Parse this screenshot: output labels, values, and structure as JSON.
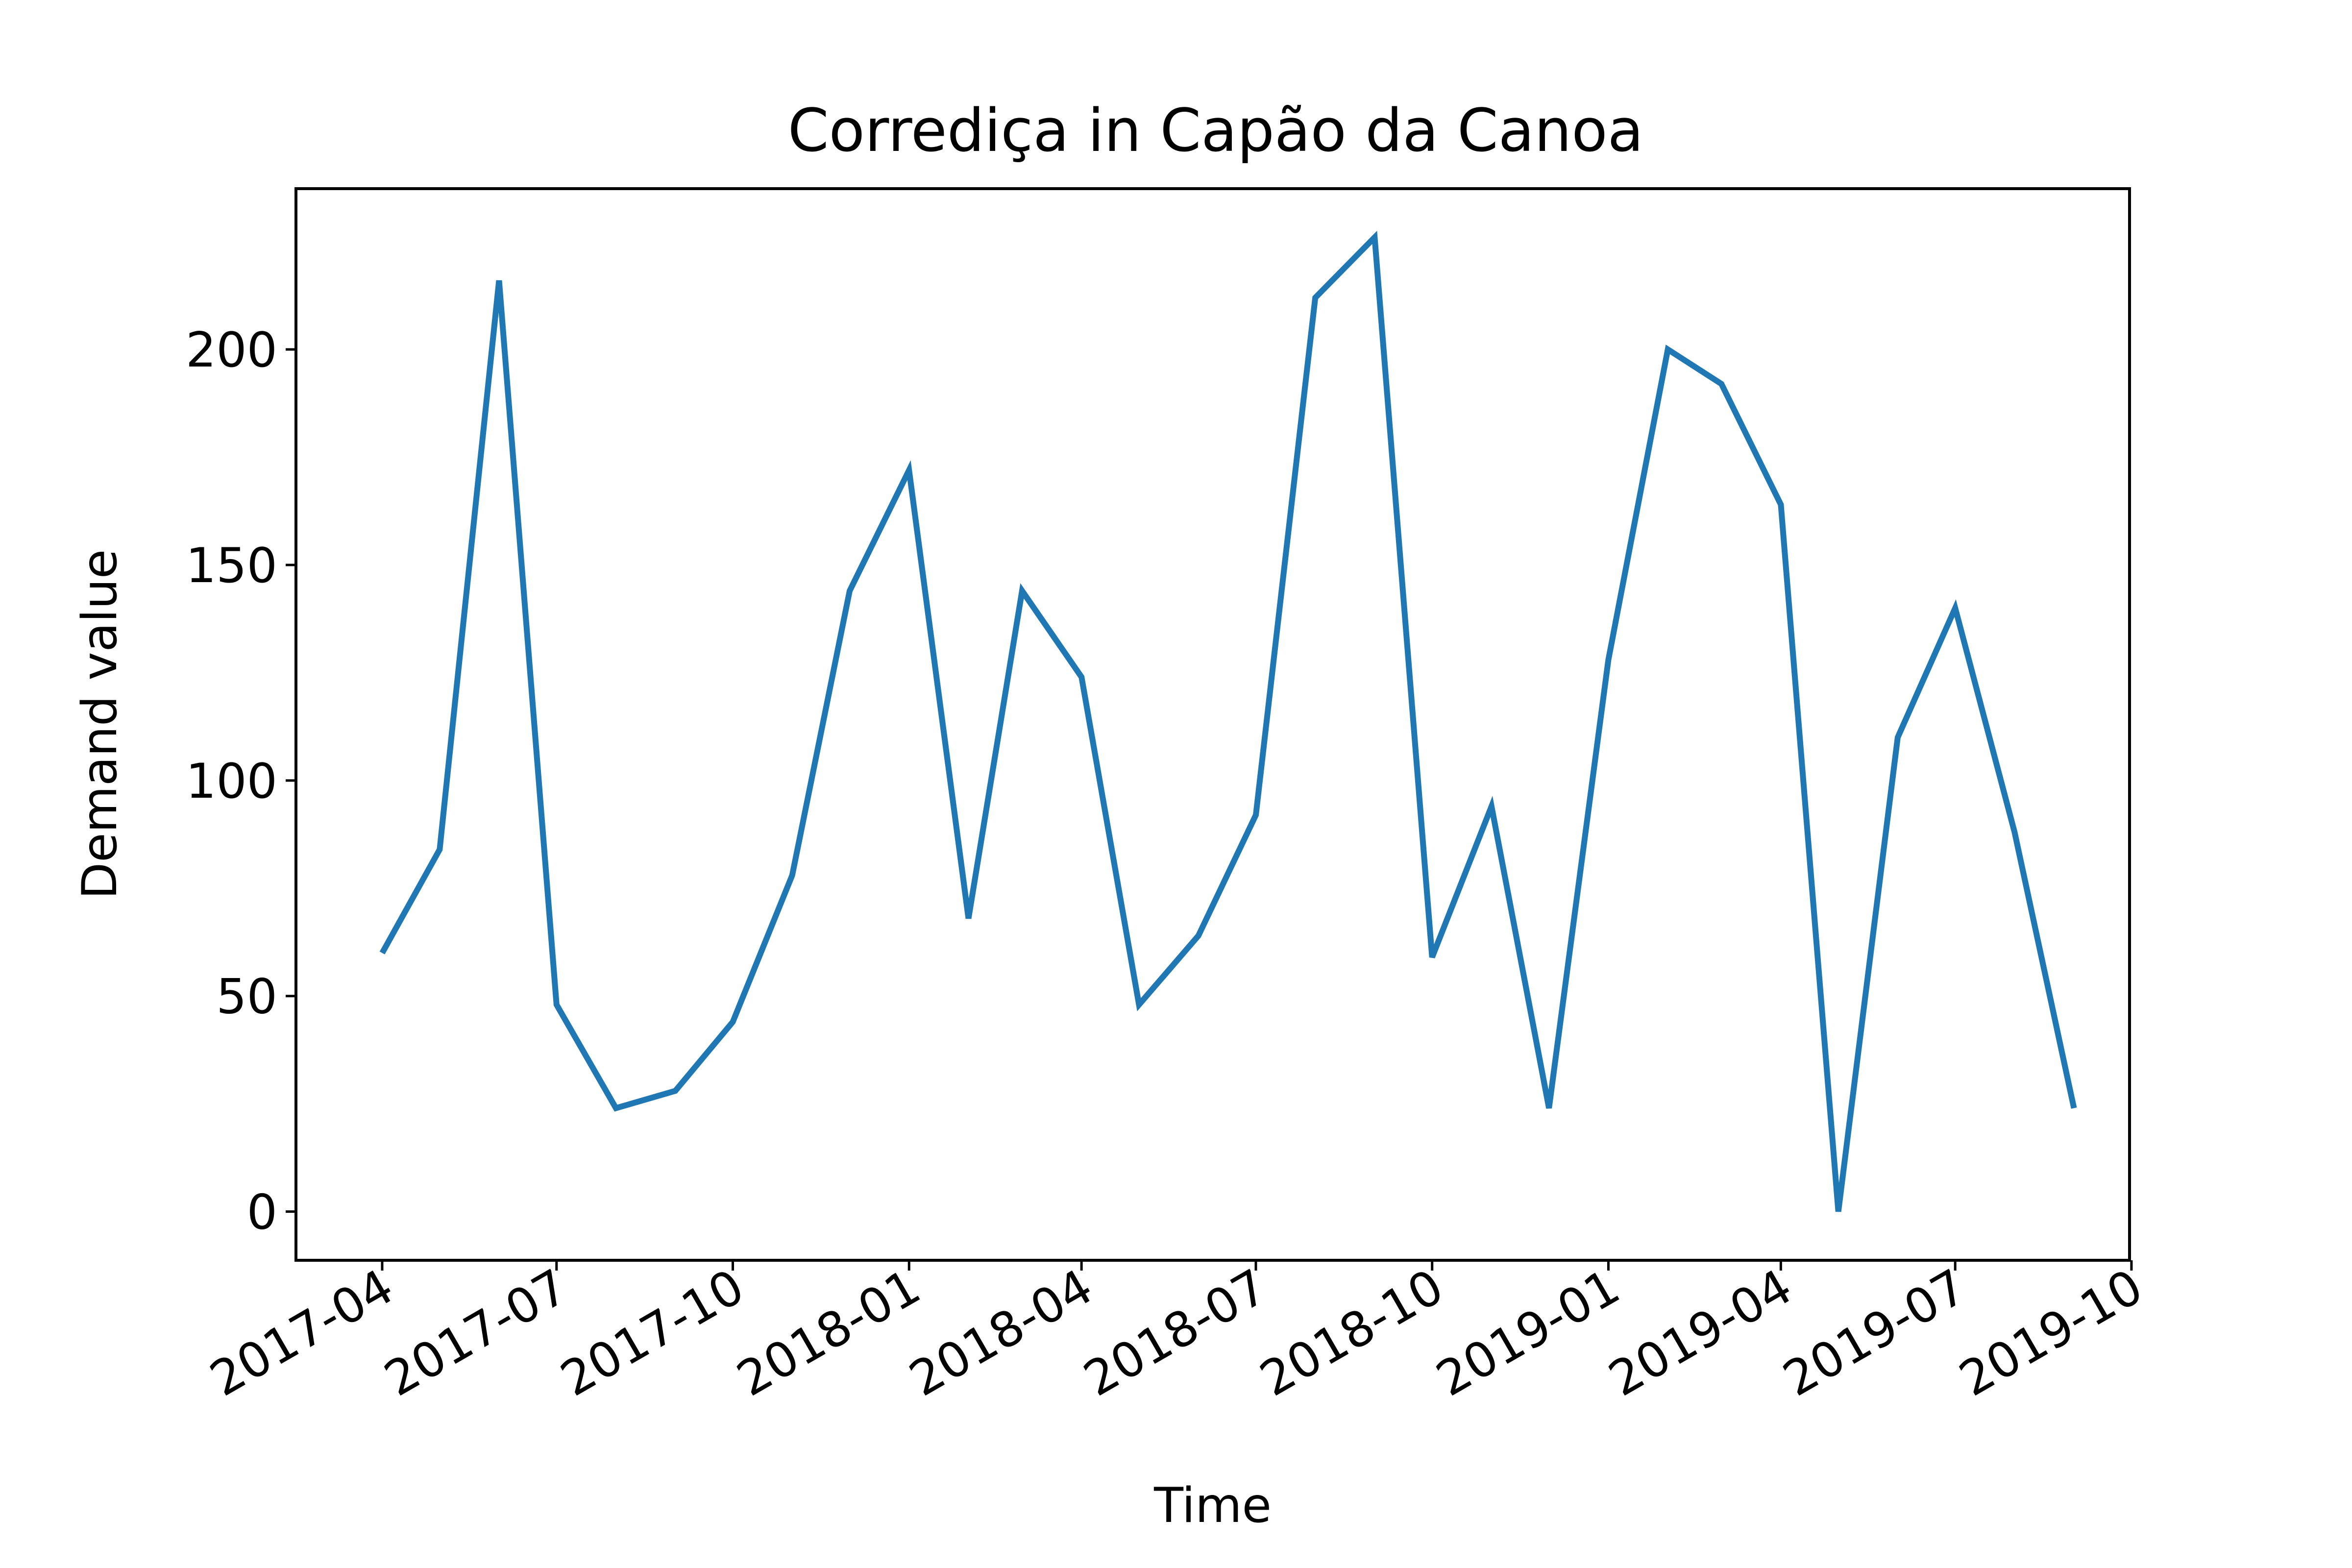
{
  "chart_data": {
    "type": "line",
    "title": "Corrediça in Capão da Canoa",
    "xlabel": "Time",
    "ylabel": "Demand value",
    "x": [
      "2017-04-01",
      "2017-05-01",
      "2017-06-01",
      "2017-07-01",
      "2017-08-01",
      "2017-09-01",
      "2017-10-01",
      "2017-11-01",
      "2017-12-01",
      "2018-01-01",
      "2018-02-01",
      "2018-03-01",
      "2018-04-01",
      "2018-05-01",
      "2018-06-01",
      "2018-07-01",
      "2018-08-01",
      "2018-09-01",
      "2018-10-01",
      "2018-11-01",
      "2018-12-01",
      "2019-01-01",
      "2019-02-01",
      "2019-03-01",
      "2019-04-01",
      "2019-05-01",
      "2019-06-01",
      "2019-07-01",
      "2019-08-01",
      "2019-09-01"
    ],
    "series": [
      {
        "color": "#1f77b4",
        "values": [
          60,
          84,
          216,
          48,
          24,
          28,
          44,
          78,
          144,
          172,
          68,
          144,
          124,
          48,
          64,
          92,
          212,
          226,
          59,
          94,
          24,
          128,
          200,
          192,
          164,
          0,
          110,
          140,
          88,
          24
        ]
      }
    ],
    "xticks": [
      "2017-04",
      "2017-07",
      "2017-10",
      "2018-01",
      "2018-04",
      "2018-07",
      "2018-10",
      "2019-01",
      "2019-04",
      "2019-07",
      "2019-10"
    ],
    "yticks": [
      0,
      50,
      100,
      150,
      200
    ],
    "xlim": [
      "2017-02-15",
      "2019-09-30"
    ],
    "ylim": [
      -11.3,
      237.3
    ],
    "grid": false,
    "legend": "none"
  }
}
